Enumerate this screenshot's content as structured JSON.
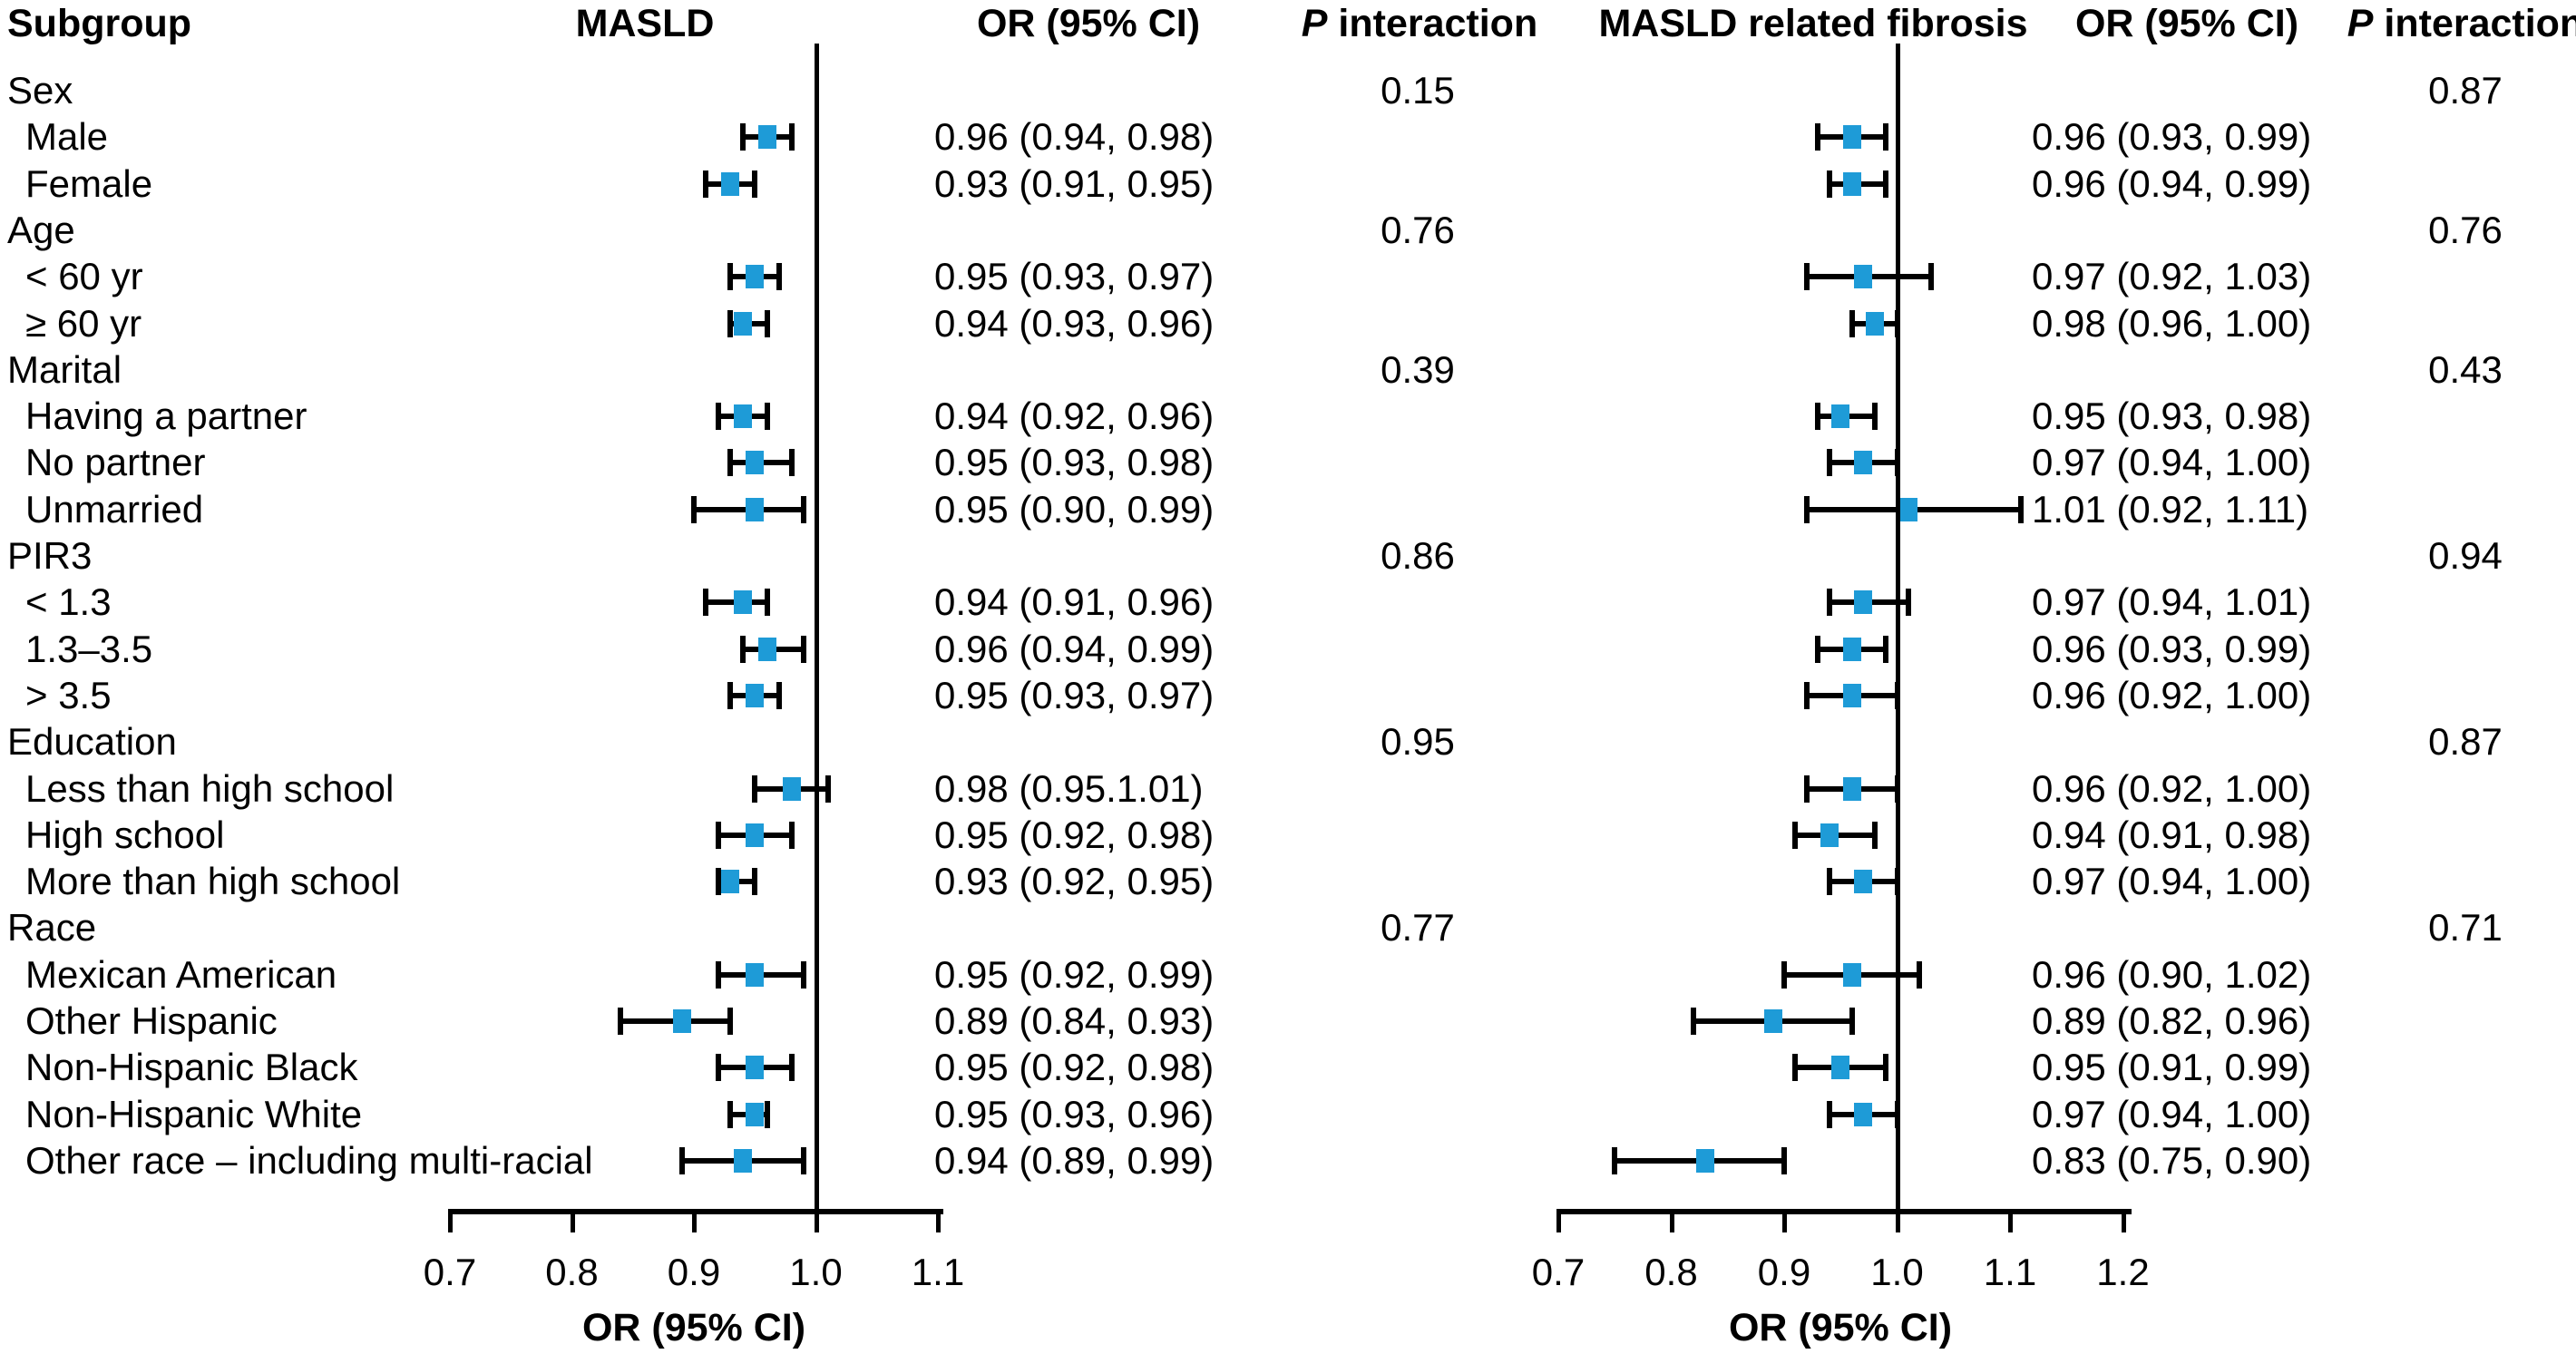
{
  "header": {
    "subgroup": "Subgroup",
    "or_ci": "OR (95% CI)",
    "p_italic": "P",
    "interaction": " interaction"
  },
  "colors": {
    "marker_blue": "#1e9bd7",
    "line_black": "#000000"
  },
  "chart_data": {
    "type": "forest",
    "panels": [
      {
        "title": "MASLD",
        "xlabel": "OR (95% CI)",
        "xmin": 0.7,
        "xmax": 1.1,
        "ticks": [
          0.7,
          0.8,
          0.9,
          1.0,
          1.1
        ],
        "ref_line": 1.0
      },
      {
        "title": "MASLD related fibrosis",
        "xlabel": "OR (95% CI)",
        "xmin": 0.7,
        "xmax": 1.2,
        "ticks": [
          0.7,
          0.8,
          0.9,
          1.0,
          1.1,
          1.2
        ],
        "ref_line": 1.0
      }
    ],
    "rows": [
      {
        "kind": "section",
        "label": "Sex",
        "p1": "0.15",
        "p2": "0.87"
      },
      {
        "kind": "item",
        "label": "Male",
        "m1": {
          "or": 0.96,
          "lo": 0.94,
          "hi": 0.98,
          "text": "0.96 (0.94, 0.98)"
        },
        "m2": {
          "or": 0.96,
          "lo": 0.93,
          "hi": 0.99,
          "text": "0.96 (0.93, 0.99)"
        }
      },
      {
        "kind": "item",
        "label": "Female",
        "m1": {
          "or": 0.93,
          "lo": 0.91,
          "hi": 0.95,
          "text": "0.93 (0.91, 0.95)"
        },
        "m2": {
          "or": 0.96,
          "lo": 0.94,
          "hi": 0.99,
          "text": "0.96 (0.94, 0.99)"
        }
      },
      {
        "kind": "section",
        "label": "Age",
        "p1": "0.76",
        "p2": "0.76"
      },
      {
        "kind": "item",
        "label": "< 60 yr",
        "m1": {
          "or": 0.95,
          "lo": 0.93,
          "hi": 0.97,
          "text": "0.95 (0.93, 0.97)"
        },
        "m2": {
          "or": 0.97,
          "lo": 0.92,
          "hi": 1.03,
          "text": "0.97 (0.92, 1.03)"
        }
      },
      {
        "kind": "item",
        "label": "≥ 60 yr",
        "m1": {
          "or": 0.94,
          "lo": 0.93,
          "hi": 0.96,
          "text": "0.94 (0.93, 0.96)"
        },
        "m2": {
          "or": 0.98,
          "lo": 0.96,
          "hi": 1.0,
          "text": "0.98 (0.96, 1.00)"
        }
      },
      {
        "kind": "section",
        "label": "Marital",
        "p1": "0.39",
        "p2": "0.43"
      },
      {
        "kind": "item",
        "label": "Having a partner",
        "m1": {
          "or": 0.94,
          "lo": 0.92,
          "hi": 0.96,
          "text": "0.94 (0.92, 0.96)"
        },
        "m2": {
          "or": 0.95,
          "lo": 0.93,
          "hi": 0.98,
          "text": "0.95 (0.93, 0.98)"
        }
      },
      {
        "kind": "item",
        "label": "No partner",
        "m1": {
          "or": 0.95,
          "lo": 0.93,
          "hi": 0.98,
          "text": "0.95 (0.93, 0.98)"
        },
        "m2": {
          "or": 0.97,
          "lo": 0.94,
          "hi": 1.0,
          "text": "0.97 (0.94, 1.00)"
        }
      },
      {
        "kind": "item",
        "label": "Unmarried",
        "m1": {
          "or": 0.95,
          "lo": 0.9,
          "hi": 0.99,
          "text": "0.95 (0.90, 0.99)"
        },
        "m2": {
          "or": 1.01,
          "lo": 0.92,
          "hi": 1.11,
          "text": "1.01 (0.92, 1.11)"
        }
      },
      {
        "kind": "section",
        "label": "PIR3",
        "p1": "0.86",
        "p2": "0.94"
      },
      {
        "kind": "item",
        "label": "< 1.3",
        "m1": {
          "or": 0.94,
          "lo": 0.91,
          "hi": 0.96,
          "text": "0.94 (0.91, 0.96)"
        },
        "m2": {
          "or": 0.97,
          "lo": 0.94,
          "hi": 1.01,
          "text": "0.97 (0.94, 1.01)"
        }
      },
      {
        "kind": "item",
        "label": "1.3–3.5",
        "m1": {
          "or": 0.96,
          "lo": 0.94,
          "hi": 0.99,
          "text": "0.96 (0.94, 0.99)"
        },
        "m2": {
          "or": 0.96,
          "lo": 0.93,
          "hi": 0.99,
          "text": "0.96 (0.93, 0.99)"
        }
      },
      {
        "kind": "item",
        "label": "> 3.5",
        "m1": {
          "or": 0.95,
          "lo": 0.93,
          "hi": 0.97,
          "text": "0.95 (0.93, 0.97)"
        },
        "m2": {
          "or": 0.96,
          "lo": 0.92,
          "hi": 1.0,
          "text": "0.96 (0.92, 1.00)"
        }
      },
      {
        "kind": "section",
        "label": "Education",
        "p1": "0.95",
        "p2": "0.87"
      },
      {
        "kind": "item",
        "label": "Less than high school",
        "m1": {
          "or": 0.98,
          "lo": 0.95,
          "hi": 1.01,
          "text": "0.98 (0.95.1.01)"
        },
        "m2": {
          "or": 0.96,
          "lo": 0.92,
          "hi": 1.0,
          "text": "0.96 (0.92, 1.00)"
        }
      },
      {
        "kind": "item",
        "label": "High school",
        "m1": {
          "or": 0.95,
          "lo": 0.92,
          "hi": 0.98,
          "text": "0.95 (0.92, 0.98)"
        },
        "m2": {
          "or": 0.94,
          "lo": 0.91,
          "hi": 0.98,
          "text": "0.94 (0.91, 0.98)"
        }
      },
      {
        "kind": "item",
        "label": "More than high school",
        "m1": {
          "or": 0.93,
          "lo": 0.92,
          "hi": 0.95,
          "text": "0.93 (0.92, 0.95)"
        },
        "m2": {
          "or": 0.97,
          "lo": 0.94,
          "hi": 1.0,
          "text": "0.97 (0.94, 1.00)"
        }
      },
      {
        "kind": "section",
        "label": "Race",
        "p1": "0.77",
        "p2": "0.71"
      },
      {
        "kind": "item",
        "label": "Mexican American",
        "m1": {
          "or": 0.95,
          "lo": 0.92,
          "hi": 0.99,
          "text": "0.95 (0.92, 0.99)"
        },
        "m2": {
          "or": 0.96,
          "lo": 0.9,
          "hi": 1.02,
          "text": "0.96 (0.90, 1.02)"
        }
      },
      {
        "kind": "item",
        "label": "Other Hispanic",
        "m1": {
          "or": 0.89,
          "lo": 0.84,
          "hi": 0.93,
          "text": "0.89 (0.84, 0.93)"
        },
        "m2": {
          "or": 0.89,
          "lo": 0.82,
          "hi": 0.96,
          "text": "0.89 (0.82, 0.96)"
        }
      },
      {
        "kind": "item",
        "label": "Non-Hispanic Black",
        "m1": {
          "or": 0.95,
          "lo": 0.92,
          "hi": 0.98,
          "text": "0.95 (0.92, 0.98)"
        },
        "m2": {
          "or": 0.95,
          "lo": 0.91,
          "hi": 0.99,
          "text": "0.95 (0.91, 0.99)"
        }
      },
      {
        "kind": "item",
        "label": "Non-Hispanic White",
        "m1": {
          "or": 0.95,
          "lo": 0.93,
          "hi": 0.96,
          "text": "0.95 (0.93, 0.96)"
        },
        "m2": {
          "or": 0.97,
          "lo": 0.94,
          "hi": 1.0,
          "text": "0.97 (0.94, 1.00)"
        }
      },
      {
        "kind": "item",
        "label": "Other race – including multi-racial",
        "m1": {
          "or": 0.94,
          "lo": 0.89,
          "hi": 0.99,
          "text": "0.94 (0.89, 0.99)"
        },
        "m2": {
          "or": 0.83,
          "lo": 0.75,
          "hi": 0.9,
          "text": "0.83 (0.75, 0.90)"
        }
      }
    ]
  }
}
